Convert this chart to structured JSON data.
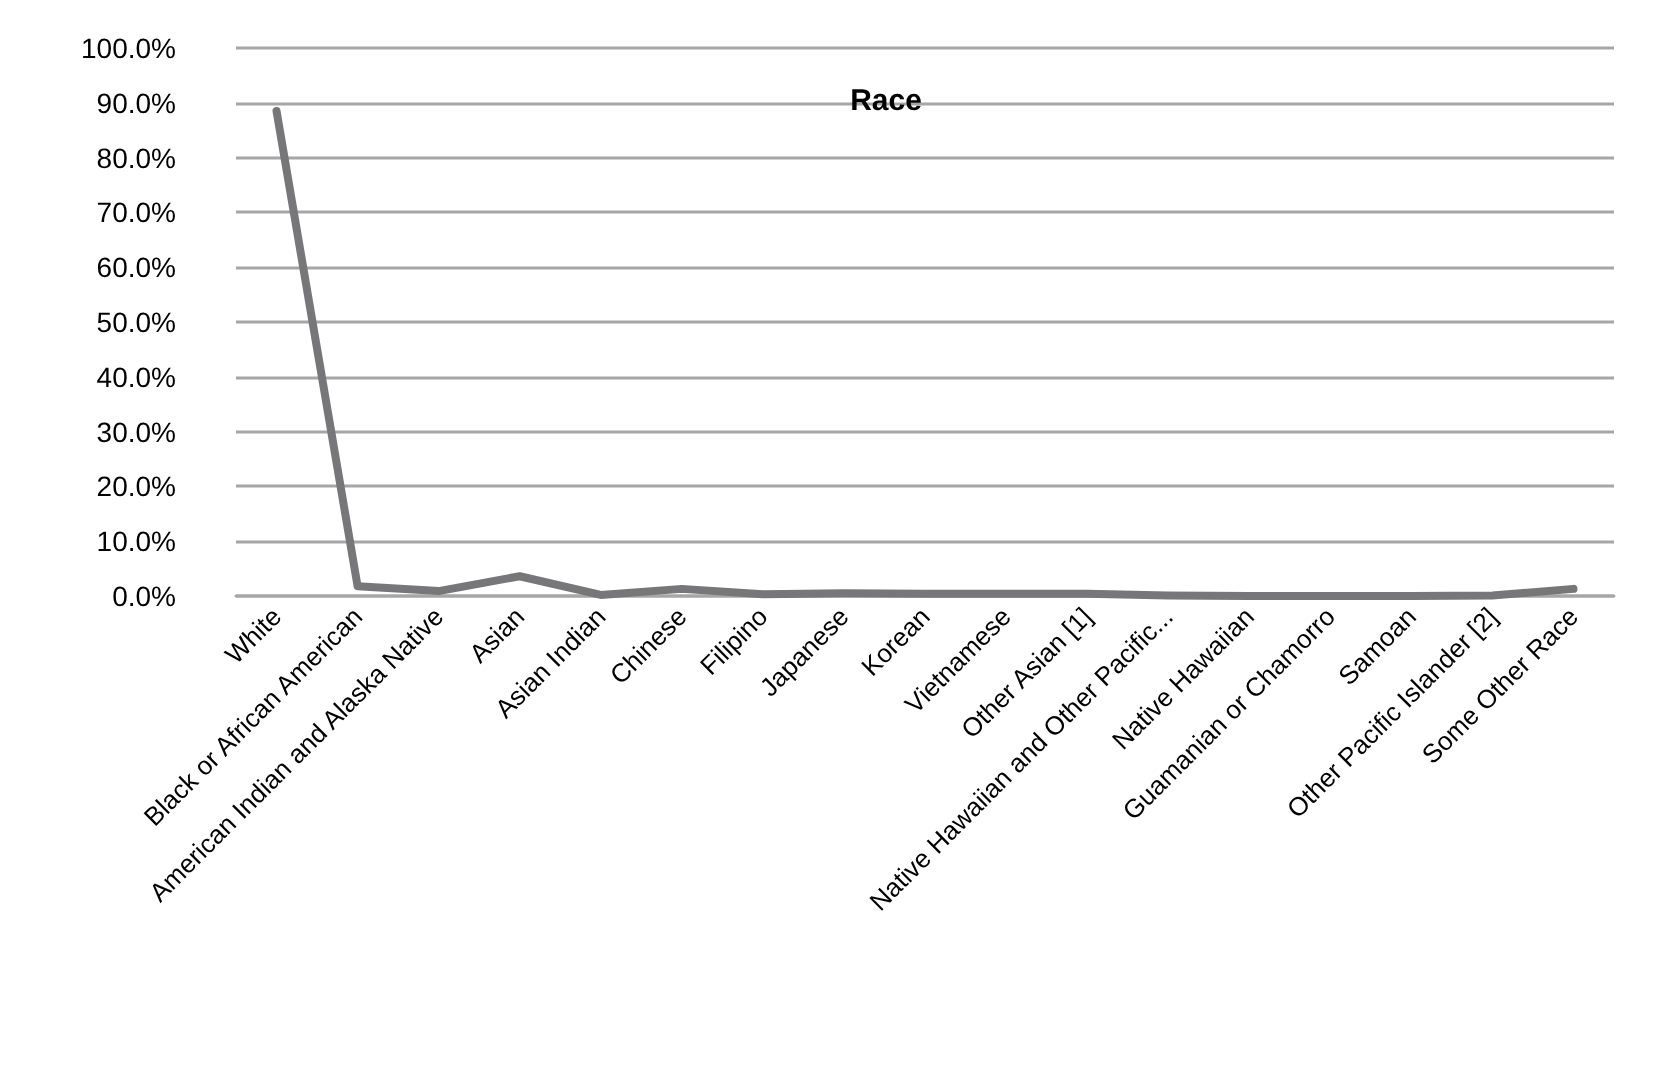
{
  "chart_data": {
    "type": "line",
    "title": "Race",
    "categories": [
      "White",
      "Black or African American",
      "American Indian and Alaska Native",
      "Asian",
      "Asian Indian",
      "Chinese",
      "Filipino",
      "Japanese",
      "Korean",
      "Vietnamese",
      "Other Asian [1]",
      "Native Hawaiian and Other Pacific...",
      "Native Hawaiian",
      "Guamanian or Chamorro",
      "Samoan",
      "Other Pacific Islander [2]",
      "Some Other Race"
    ],
    "series": [
      {
        "color": "#77777a",
        "values": [
          88.5,
          1.8,
          0.9,
          3.6,
          0.2,
          1.3,
          0.3,
          0.5,
          0.4,
          0.4,
          0.4,
          0.1,
          0.0,
          0.0,
          0.0,
          0.1,
          1.3
        ]
      }
    ],
    "ylim": [
      0,
      100
    ],
    "yticks": [
      {
        "value": 0,
        "label": "0.0%"
      },
      {
        "value": 10,
        "label": "10.0%"
      },
      {
        "value": 20,
        "label": "20.0%"
      },
      {
        "value": 30,
        "label": "30.0%"
      },
      {
        "value": 40,
        "label": "40.0%"
      },
      {
        "value": 50,
        "label": "50.0%"
      },
      {
        "value": 60,
        "label": "60.0%"
      },
      {
        "value": 70,
        "label": "70.0%"
      },
      {
        "value": 80,
        "label": "80.0%"
      },
      {
        "value": 90,
        "label": "90.0%"
      },
      {
        "value": 100,
        "label": "100.0%"
      }
    ],
    "grid": "y",
    "marker": "none",
    "line_style": "solid"
  }
}
